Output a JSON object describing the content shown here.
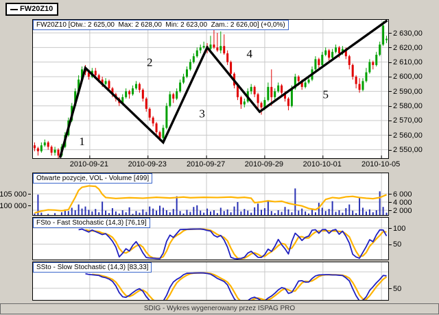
{
  "legend": {
    "label": "FW20Z10"
  },
  "footer": {
    "text": "SDIG - Wykres wygenerowany przez ISPAG PRO"
  },
  "colors": {
    "background": "#d4d0c8",
    "up": "#00a000",
    "down": "#e00000",
    "volume_bar": "#2830b4",
    "open_interest_line": "#ffb400",
    "stoch_main": "#2020c0",
    "stoch_signal": "#ffb400",
    "zigzag": "#000000",
    "grid": "#c8c8c8",
    "title_border": "#3a66cc"
  },
  "chart_data": [
    {
      "id": "price",
      "type": "candlestick",
      "title": "FW20Z10 [Otw.: 2 625,00  Max: 2 628,00  Min: 2 623,00  Zam.: 2 626,00] (+0,0%)",
      "ylim": [
        2544,
        2640
      ],
      "y_axis": {
        "side": "right",
        "ticks": [
          {
            "label": "2 630,00",
            "value": 2630
          },
          {
            "label": "2 620,00",
            "value": 2620
          },
          {
            "label": "2 610,00",
            "value": 2610
          },
          {
            "label": "2 600,00",
            "value": 2600
          },
          {
            "label": "2 590,00",
            "value": 2590
          },
          {
            "label": "2 580,00",
            "value": 2580
          },
          {
            "label": "2 570,00",
            "value": 2570
          },
          {
            "label": "2 560,00",
            "value": 2560
          },
          {
            "label": "2 550,00",
            "value": 2550
          }
        ]
      },
      "x_axis": {
        "ticks": [
          {
            "label": "2010-09-21",
            "i": 16.3
          },
          {
            "label": "2010-09-23",
            "i": 33.5
          },
          {
            "label": "2010-09-27",
            "i": 50.8
          },
          {
            "label": "2010-09-29",
            "i": 68.0
          },
          {
            "label": "2010-10-01",
            "i": 85.2
          },
          {
            "label": "2010-10-05",
            "i": 102.5
          }
        ]
      },
      "candles": [
        [
          2553,
          2555,
          2549,
          2551
        ],
        [
          2551,
          2552,
          2546,
          2549
        ],
        [
          2549,
          2555,
          2548,
          2553
        ],
        [
          2553,
          2557,
          2552,
          2555
        ],
        [
          2555,
          2556,
          2550,
          2552
        ],
        [
          2552,
          2553,
          2546,
          2548
        ],
        [
          2548,
          2552,
          2546,
          2550
        ],
        [
          2550,
          2551,
          2544,
          2546
        ],
        [
          2546,
          2554,
          2545,
          2552
        ],
        [
          2552,
          2562,
          2551,
          2560
        ],
        [
          2560,
          2572,
          2559,
          2570
        ],
        [
          2570,
          2582,
          2569,
          2580
        ],
        [
          2580,
          2592,
          2579,
          2590
        ],
        [
          2590,
          2601,
          2589,
          2598
        ],
        [
          2598,
          2607,
          2597,
          2605
        ],
        [
          2605,
          2608,
          2601,
          2603
        ],
        [
          2603,
          2604,
          2598,
          2600
        ],
        [
          2600,
          2606,
          2599,
          2604
        ],
        [
          2604,
          2606,
          2599,
          2601
        ],
        [
          2601,
          2602,
          2596,
          2598
        ],
        [
          2598,
          2600,
          2593,
          2595
        ],
        [
          2595,
          2599,
          2594,
          2597
        ],
        [
          2597,
          2598,
          2590,
          2592
        ],
        [
          2592,
          2593,
          2586,
          2588
        ],
        [
          2588,
          2589,
          2583,
          2585
        ],
        [
          2585,
          2586,
          2580,
          2582
        ],
        [
          2582,
          2588,
          2581,
          2586
        ],
        [
          2586,
          2592,
          2585,
          2590
        ],
        [
          2590,
          2591,
          2585,
          2588
        ],
        [
          2588,
          2594,
          2587,
          2592
        ],
        [
          2592,
          2597,
          2591,
          2595
        ],
        [
          2595,
          2596,
          2589,
          2591
        ],
        [
          2591,
          2592,
          2583,
          2585
        ],
        [
          2585,
          2586,
          2576,
          2578
        ],
        [
          2578,
          2579,
          2570,
          2572
        ],
        [
          2572,
          2573,
          2566,
          2568
        ],
        [
          2568,
          2569,
          2560,
          2562
        ],
        [
          2562,
          2563,
          2556,
          2558
        ],
        [
          2558,
          2567,
          2556,
          2565
        ],
        [
          2565,
          2582,
          2564,
          2580
        ],
        [
          2580,
          2590,
          2579,
          2588
        ],
        [
          2588,
          2589,
          2582,
          2585
        ],
        [
          2585,
          2592,
          2584,
          2590
        ],
        [
          2590,
          2598,
          2589,
          2596
        ],
        [
          2596,
          2602,
          2595,
          2600
        ],
        [
          2600,
          2607,
          2599,
          2605
        ],
        [
          2605,
          2612,
          2604,
          2610
        ],
        [
          2610,
          2616,
          2609,
          2614
        ],
        [
          2614,
          2620,
          2613,
          2618
        ],
        [
          2618,
          2622,
          2616,
          2620
        ],
        [
          2620,
          2624,
          2619,
          2621
        ],
        [
          2621,
          2623,
          2616,
          2619
        ],
        [
          2619,
          2628,
          2618,
          2622
        ],
        [
          2622,
          2632,
          2619,
          2620
        ],
        [
          2620,
          2630,
          2617,
          2618
        ],
        [
          2618,
          2631,
          2616,
          2621
        ],
        [
          2621,
          2629,
          2615,
          2616
        ],
        [
          2616,
          2618,
          2608,
          2610
        ],
        [
          2610,
          2611,
          2600,
          2602
        ],
        [
          2602,
          2603,
          2592,
          2594
        ],
        [
          2594,
          2595,
          2584,
          2586
        ],
        [
          2586,
          2587,
          2578,
          2581
        ],
        [
          2581,
          2585,
          2579,
          2583
        ],
        [
          2583,
          2592,
          2582,
          2590
        ],
        [
          2590,
          2595,
          2588,
          2593
        ],
        [
          2593,
          2594,
          2586,
          2588
        ],
        [
          2588,
          2589,
          2577,
          2582
        ],
        [
          2582,
          2583,
          2574,
          2579
        ],
        [
          2579,
          2586,
          2577,
          2584
        ],
        [
          2584,
          2596,
          2583,
          2593
        ],
        [
          2593,
          2605,
          2580,
          2586
        ],
        [
          2586,
          2592,
          2584,
          2590
        ],
        [
          2590,
          2596,
          2589,
          2594
        ],
        [
          2594,
          2595,
          2587,
          2589
        ],
        [
          2589,
          2590,
          2583,
          2585
        ],
        [
          2585,
          2586,
          2577,
          2580
        ],
        [
          2580,
          2594,
          2579,
          2592
        ],
        [
          2592,
          2602,
          2591,
          2600
        ],
        [
          2600,
          2601,
          2594,
          2597
        ],
        [
          2597,
          2598,
          2591,
          2593
        ],
        [
          2593,
          2598,
          2592,
          2596
        ],
        [
          2596,
          2601,
          2595,
          2598
        ],
        [
          2598,
          2607,
          2597,
          2605
        ],
        [
          2605,
          2614,
          2604,
          2612
        ],
        [
          2612,
          2613,
          2606,
          2608
        ],
        [
          2608,
          2617,
          2607,
          2615
        ],
        [
          2615,
          2620,
          2614,
          2618
        ],
        [
          2618,
          2619,
          2611,
          2613
        ],
        [
          2613,
          2619,
          2612,
          2617
        ],
        [
          2617,
          2622,
          2616,
          2620
        ],
        [
          2620,
          2621,
          2613,
          2616
        ],
        [
          2616,
          2621,
          2615,
          2619
        ],
        [
          2619,
          2620,
          2612,
          2614
        ],
        [
          2614,
          2615,
          2605,
          2608
        ],
        [
          2608,
          2609,
          2598,
          2600
        ],
        [
          2600,
          2601,
          2592,
          2595
        ],
        [
          2595,
          2599,
          2589,
          2591
        ],
        [
          2591,
          2599,
          2590,
          2597
        ],
        [
          2597,
          2606,
          2596,
          2603
        ],
        [
          2603,
          2612,
          2602,
          2610
        ],
        [
          2610,
          2611,
          2605,
          2608
        ],
        [
          2608,
          2617,
          2607,
          2615
        ],
        [
          2615,
          2624,
          2614,
          2622
        ],
        [
          2622,
          2638,
          2621,
          2635
        ],
        [
          2625,
          2628,
          2623,
          2626
        ]
      ],
      "zigzag": {
        "points": [
          {
            "i": 7.5,
            "p": 2544.5
          },
          {
            "i": 15,
            "p": 2606
          },
          {
            "i": 38,
            "p": 2555
          },
          {
            "i": 51,
            "p": 2620
          },
          {
            "i": 66.5,
            "p": 2576
          },
          {
            "i": 104.2,
            "p": 2638.5
          }
        ],
        "wave_labels": [
          {
            "text": "1",
            "i": 14,
            "p": 2556
          },
          {
            "text": "2",
            "i": 34,
            "p": 2610
          },
          {
            "text": "3",
            "i": 49.5,
            "p": 2575
          },
          {
            "text": "4",
            "i": 63.5,
            "p": 2616
          },
          {
            "text": "5",
            "i": 86,
            "p": 2588
          }
        ]
      }
    },
    {
      "id": "volume",
      "type": "bar",
      "title": "Otwarte pozycje, VOL - Volume [499]",
      "left_ticks": [
        {
          "label": "105 000",
          "value": 105000
        },
        {
          "label": "100 000",
          "value": 100000
        }
      ],
      "right_ticks": [
        {
          "label": "6 000",
          "value": 6000
        },
        {
          "label": "4 000",
          "value": 4000
        },
        {
          "label": "2 000",
          "value": 2000
        }
      ],
      "volumes": [
        1200,
        5800,
        1400,
        1000,
        1100,
        1000,
        1300,
        1000,
        1500,
        2200,
        1800,
        2600,
        2000,
        3400,
        2400,
        2900,
        2100,
        1700,
        2300,
        1500,
        4100,
        1900,
        1300,
        2500,
        1700,
        1200,
        2000,
        1500,
        2700,
        1100,
        1800,
        1400,
        2200,
        1600,
        2900,
        2400,
        1900,
        3100,
        2600,
        2000,
        1500,
        2300,
        5400,
        1800,
        1200,
        2100,
        1600,
        2800,
        3200,
        1900,
        1400,
        2400,
        1700,
        2000,
        1300,
        2600,
        1800,
        2200,
        1500,
        2900,
        4000,
        1700,
        2300,
        1900,
        1400,
        2700,
        3600,
        2100,
        2500,
        4400,
        1800,
        1300,
        2000,
        1600,
        2800,
        2200,
        1500,
        7300,
        1900,
        2400,
        1700,
        1200,
        2100,
        1500,
        3800,
        2600,
        1800,
        2300,
        4200,
        1600,
        2000,
        1400,
        2500,
        3400,
        1900,
        1300,
        5000,
        2600,
        1700,
        2200,
        1500,
        2000,
        6600,
        2800,
        1400
      ],
      "open_interest": [
        [
          0,
          96800
        ],
        [
          2,
          97600
        ],
        [
          4,
          98100
        ],
        [
          6,
          98000
        ],
        [
          8,
          97700
        ],
        [
          10,
          98200
        ],
        [
          12,
          103500
        ],
        [
          13,
          106500
        ],
        [
          14,
          107800
        ],
        [
          16,
          108400
        ],
        [
          18,
          108200
        ],
        [
          19,
          107000
        ],
        [
          20,
          104800
        ],
        [
          21,
          103400
        ],
        [
          24,
          103000
        ],
        [
          28,
          103300
        ],
        [
          32,
          103100
        ],
        [
          36,
          103500
        ],
        [
          40,
          103200
        ],
        [
          44,
          103600
        ],
        [
          46,
          103300
        ],
        [
          50,
          103500
        ],
        [
          54,
          103400
        ],
        [
          58,
          103600
        ],
        [
          60,
          103300
        ],
        [
          62,
          103500
        ],
        [
          64,
          103100
        ],
        [
          65,
          101200
        ],
        [
          67,
          101500
        ],
        [
          69,
          102000
        ],
        [
          71,
          101600
        ],
        [
          73,
          101800
        ],
        [
          75,
          100900
        ],
        [
          77,
          100300
        ],
        [
          79,
          99800
        ],
        [
          81,
          98700
        ],
        [
          83,
          98200
        ],
        [
          84,
          99000
        ],
        [
          85,
          100800
        ],
        [
          86,
          102600
        ],
        [
          88,
          103400
        ],
        [
          90,
          103100
        ],
        [
          92,
          103700
        ],
        [
          94,
          103900
        ],
        [
          96,
          103400
        ],
        [
          98,
          103100
        ],
        [
          100,
          102900
        ],
        [
          102,
          103400
        ],
        [
          104,
          104600
        ]
      ]
    },
    {
      "id": "fsto",
      "type": "line",
      "title": "FSto - Fast Stochastic (14,3) [76,19]",
      "right_ticks": [
        {
          "label": "100",
          "value": 100
        },
        {
          "label": "50",
          "value": 50
        }
      ],
      "derived": "fast stochastic (14,3) computed from price candles"
    },
    {
      "id": "ssto",
      "type": "line",
      "title": "SSto - Slow Stochastic (14,3) [83,33]",
      "right_ticks": [
        {
          "label": "50",
          "value": 50
        }
      ],
      "derived": "slow stochastic (14,3) computed from price candles"
    }
  ]
}
